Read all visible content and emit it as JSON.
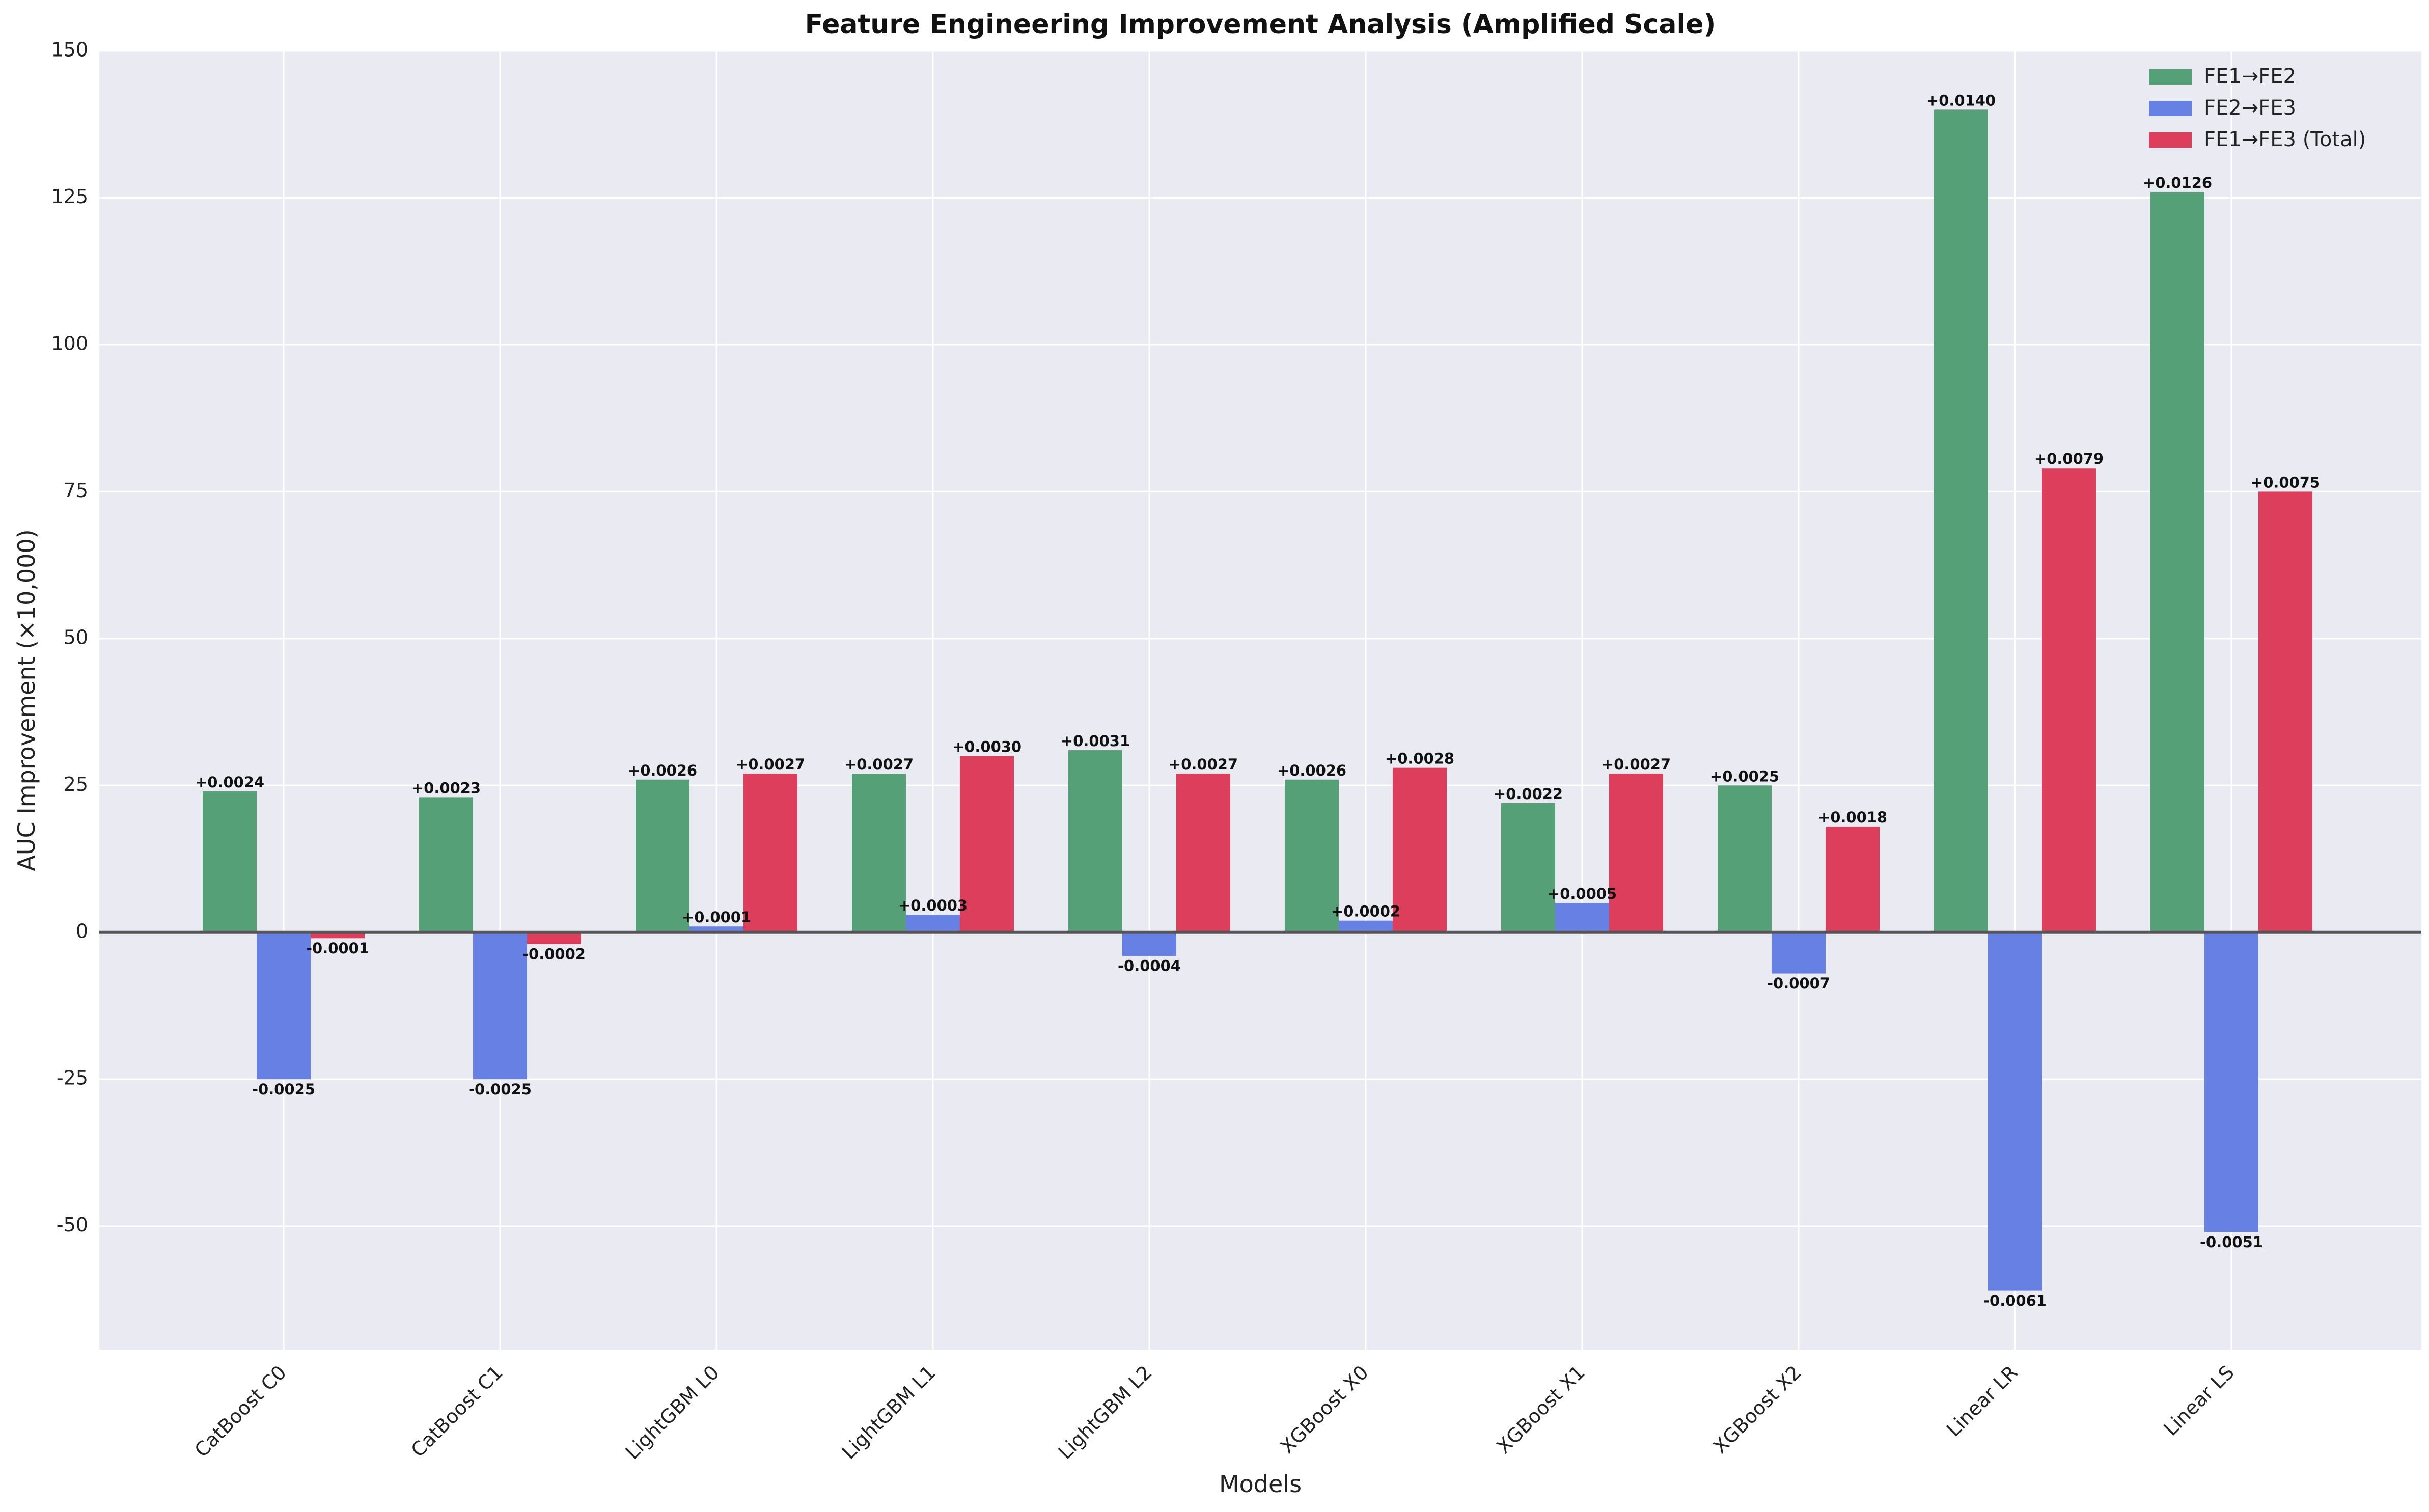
{
  "chart_data": {
    "type": "bar",
    "title": "Feature Engineering Improvement Analysis (Amplified Scale)",
    "xlabel": "Models",
    "ylabel": "AUC Improvement (×10,000)",
    "ylim": [
      -71,
      150
    ],
    "yticks": [
      -50,
      -25,
      0,
      25,
      50,
      75,
      100,
      125,
      150
    ],
    "grid": true,
    "legend_position": "top-right",
    "categories": [
      "CatBoost C0",
      "CatBoost C1",
      "LightGBM L0",
      "LightGBM L1",
      "LightGBM L2",
      "XGBoost X0",
      "XGBoost X1",
      "XGBoost X2",
      "Linear LR",
      "Linear LS"
    ],
    "series": [
      {
        "name": "FE1→FE2",
        "color": "#55a077",
        "values": [
          24,
          23,
          26,
          27,
          31,
          26,
          22,
          25,
          140,
          126
        ],
        "labels": [
          "+0.0024",
          "+0.0023",
          "+0.0026",
          "+0.0027",
          "+0.0031",
          "+0.0026",
          "+0.0022",
          "+0.0025",
          "+0.0140",
          "+0.0126"
        ]
      },
      {
        "name": "FE2→FE3",
        "color": "#6681e3",
        "values": [
          -25,
          -25,
          1,
          3,
          -4,
          2,
          5,
          -7,
          -61,
          -51
        ],
        "labels": [
          "-0.0025",
          "-0.0025",
          "+0.0001",
          "+0.0003",
          "-0.0004",
          "+0.0002",
          "+0.0005",
          "-0.0007",
          "-0.0061",
          "-0.0051"
        ]
      },
      {
        "name": "FE1→FE3 (Total)",
        "color": "#dc3e5b",
        "values": [
          -1,
          -2,
          27,
          30,
          27,
          28,
          27,
          18,
          79,
          75
        ],
        "labels": [
          "-0.0001",
          "-0.0002",
          "+0.0027",
          "+0.0030",
          "+0.0027",
          "+0.0028",
          "+0.0027",
          "+0.0018",
          "+0.0079",
          "+0.0075"
        ]
      }
    ]
  }
}
